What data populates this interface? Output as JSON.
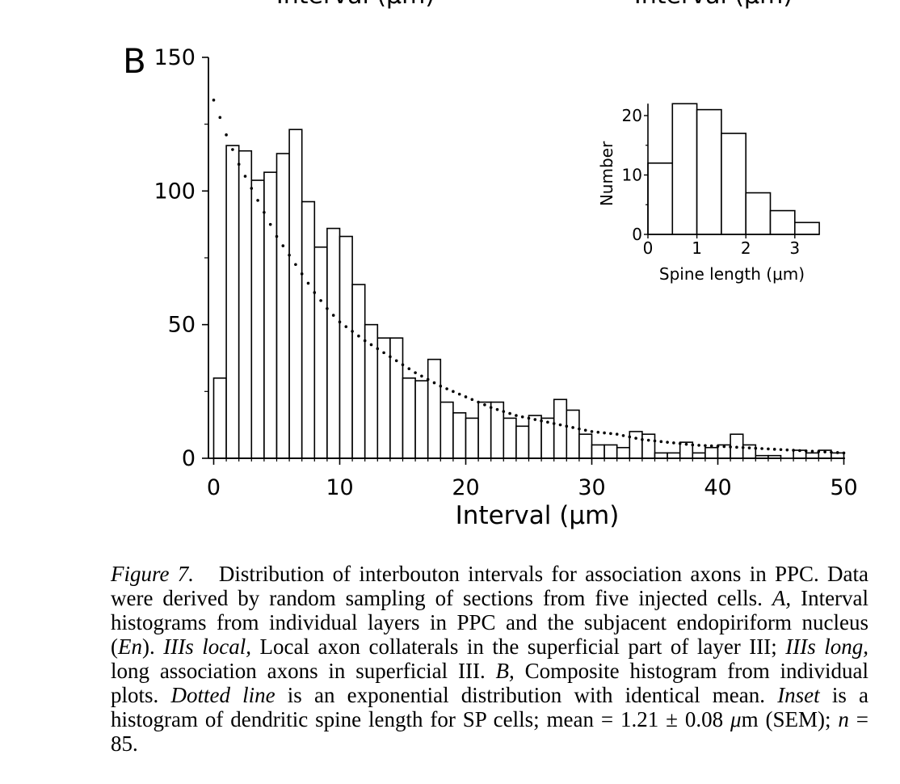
{
  "top_fragment": {
    "left": "Interval (µm)",
    "right": "Interval (µm)"
  },
  "panel_label": "B",
  "chart_data": [
    {
      "type": "bar",
      "xlabel": "Interval (µm)",
      "ylabel": "",
      "xlim": [
        -1,
        50
      ],
      "ylim": [
        0,
        150
      ],
      "xticks": [
        0,
        10,
        20,
        30,
        40,
        50
      ],
      "yticks": [
        0,
        50,
        100,
        150
      ],
      "bin_width": 1,
      "bin_left_edges": [
        0,
        1,
        2,
        3,
        4,
        5,
        6,
        7,
        8,
        9,
        10,
        11,
        12,
        13,
        14,
        15,
        16,
        17,
        18,
        19,
        20,
        21,
        22,
        23,
        24,
        25,
        26,
        27,
        28,
        29,
        30,
        31,
        32,
        33,
        34,
        35,
        36,
        37,
        38,
        39,
        40,
        41,
        42,
        43,
        44,
        45,
        46,
        47,
        48,
        49
      ],
      "values": [
        30,
        117,
        115,
        104,
        107,
        114,
        123,
        96,
        79,
        86,
        83,
        65,
        50,
        45,
        45,
        30,
        29,
        37,
        21,
        17,
        15,
        21,
        21,
        15,
        12,
        16,
        15,
        22,
        18,
        9,
        5,
        5,
        4,
        10,
        9,
        2,
        2,
        6,
        2,
        4,
        5,
        9,
        5,
        1,
        1,
        0,
        3,
        2,
        3,
        2
      ],
      "fit_line": {
        "style": "dotted",
        "description_key": "exponential",
        "x": [
          0,
          1,
          2,
          3,
          4,
          5,
          6,
          7,
          8,
          9,
          10,
          12,
          14,
          16,
          18,
          20,
          22,
          24,
          26,
          28,
          30,
          32,
          34,
          36,
          38,
          40,
          42,
          44,
          46,
          48,
          50
        ],
        "y": [
          134,
          121,
          110,
          101,
          92,
          83,
          76,
          69,
          62,
          56,
          51,
          44,
          38,
          32,
          27,
          23,
          19,
          16,
          14,
          12,
          10,
          9,
          7,
          6,
          5,
          4.5,
          4,
          3.5,
          3,
          2.5,
          2
        ]
      },
      "grid": false,
      "legend": "none"
    },
    {
      "type": "bar",
      "inset": true,
      "xlabel": "Spine length (μm)",
      "ylabel": "Number",
      "xlim": [
        0,
        3.5
      ],
      "ylim": [
        0,
        22
      ],
      "xticks": [
        0,
        1,
        2,
        3
      ],
      "yticks": [
        0,
        10,
        20
      ],
      "bin_width": 0.5,
      "bin_left_edges": [
        0,
        0.5,
        1.0,
        1.5,
        2.0,
        2.5,
        3.0
      ],
      "values": [
        12,
        22,
        21,
        17,
        7,
        4,
        2
      ],
      "grid": false,
      "legend": "none"
    }
  ],
  "caption": {
    "fig_label": "Figure 7.",
    "sentence_1": "Distribution of interbouton intervals for association axons in PPC. Data were derived by random sampling of sections from five injected cells.",
    "a_label": "A,",
    "a_text": "Interval histograms from individual layers in PPC and the subjacent endopiriform nucleus (",
    "en_term": "En",
    "en_close": ").",
    "iiis_local_label": "IIIs local,",
    "iiis_local_text": "Local axon collaterals in the superficial part of layer III;",
    "iiis_long_label": "IIIs long,",
    "iiis_long_text": "long association axons in superficial III.",
    "b_label": "B,",
    "b_text": "Composite histogram from individual plots.",
    "dotted_label": "Dotted line",
    "dotted_text": "is an exponential distribution with identical mean.",
    "inset_label": "Inset",
    "inset_text": "is a histogram of dendritic spine length for SP cells; mean = 1.21 ± 0.08",
    "mu_symbol": "μ",
    "units_text": "m (SEM);",
    "n_label": "n",
    "n_text": "= 85."
  }
}
